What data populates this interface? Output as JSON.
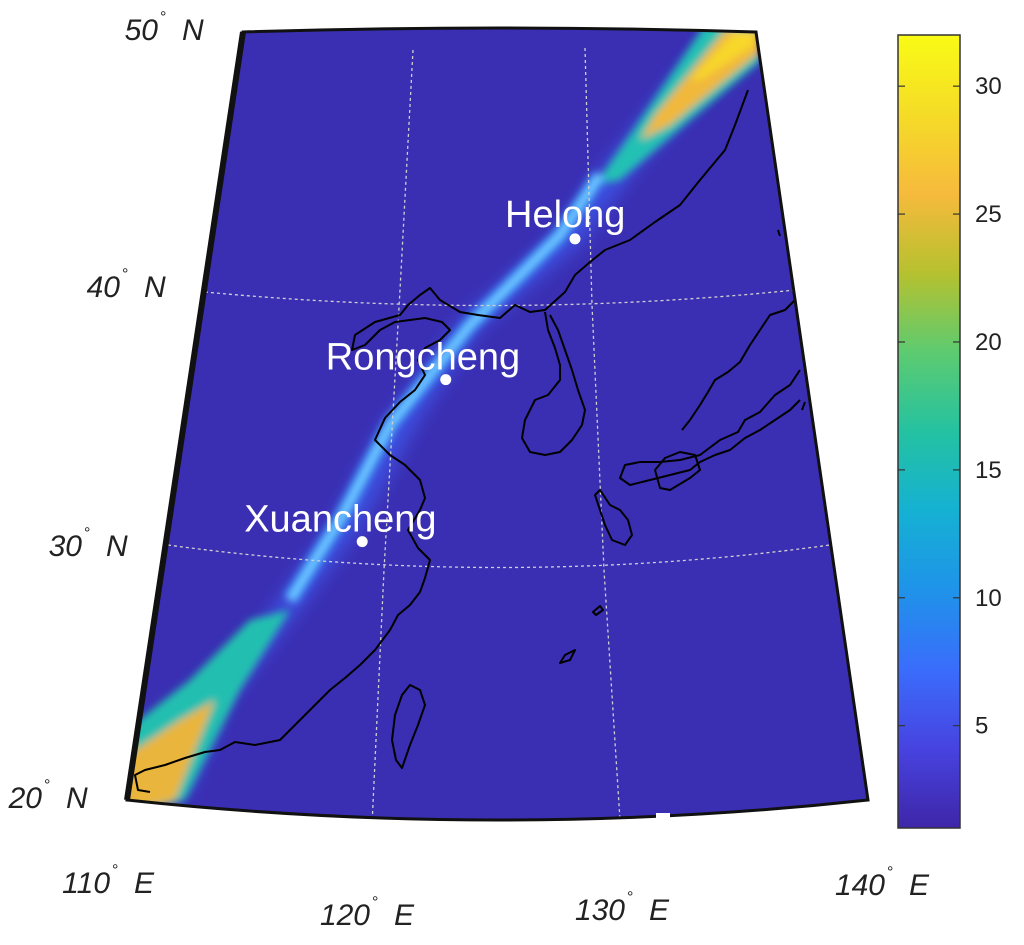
{
  "map": {
    "projection": "conic",
    "extent": {
      "lon": [
        110,
        140
      ],
      "lat": [
        20,
        50
      ]
    },
    "gridlines": {
      "lons": [
        120,
        130
      ],
      "lats": [
        30,
        40
      ],
      "style": "dotted",
      "color": "#cfcfcf"
    },
    "coastline_color": "#000000",
    "background_color": "#3a2fb3"
  },
  "lat_labels": [
    {
      "value": 50,
      "text": "50",
      "hemi": "N"
    },
    {
      "value": 40,
      "text": "40",
      "hemi": "N"
    },
    {
      "value": 30,
      "text": "30",
      "hemi": "N"
    },
    {
      "value": 20,
      "text": "20",
      "hemi": "N"
    }
  ],
  "lon_labels": [
    {
      "value": 110,
      "text": "110",
      "hemi": "E"
    },
    {
      "value": 120,
      "text": "120",
      "hemi": "E"
    },
    {
      "value": 130,
      "text": "130",
      "hemi": "E"
    },
    {
      "value": 140,
      "text": "140",
      "hemi": "E"
    }
  ],
  "cities": [
    {
      "name": "Helong",
      "lon": 129.0,
      "lat": 42.5
    },
    {
      "name": "Rongcheng",
      "lon": 122.4,
      "lat": 37.2
    },
    {
      "name": "Xuancheng",
      "lon": 118.8,
      "lat": 30.9
    }
  ],
  "colorbar": {
    "min": 1,
    "max": 32,
    "ticks": [
      5,
      10,
      15,
      20,
      25,
      30
    ],
    "tick_labels": [
      "5",
      "10",
      "15",
      "20",
      "25",
      "30"
    ],
    "colormap": [
      "#3e26a8",
      "#4743e0",
      "#3a6dfc",
      "#1f93e9",
      "#15b1d3",
      "#24c2a1",
      "#5dcb70",
      "#b6c12f",
      "#f6ba3c",
      "#f5dc27",
      "#f9fb15"
    ]
  }
}
